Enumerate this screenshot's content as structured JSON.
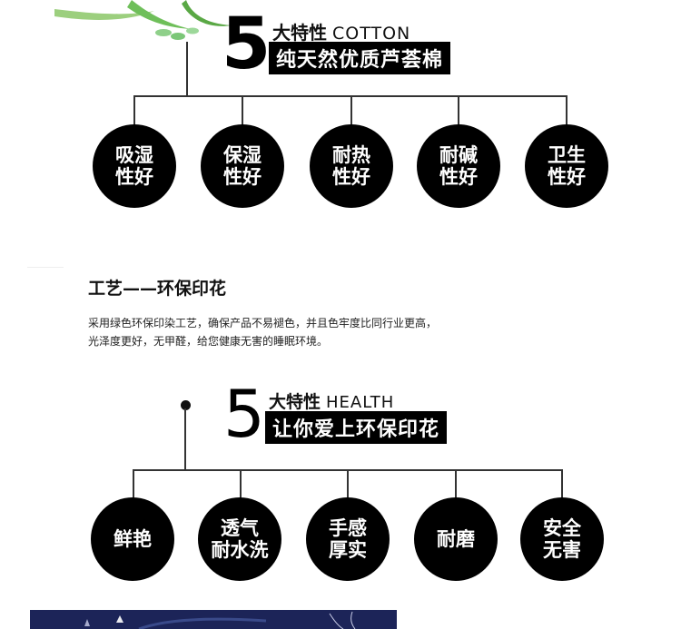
{
  "section1": {
    "number": "5",
    "title": "大特性",
    "title_en": "COTTON",
    "subtitle": "纯天然优质芦荟棉",
    "features": [
      {
        "line1": "吸湿",
        "line2": "性好"
      },
      {
        "line1": "保湿",
        "line2": "性好"
      },
      {
        "line1": "耐热",
        "line2": "性好"
      },
      {
        "line1": "耐碱",
        "line2": "性好"
      },
      {
        "line1": "卫生",
        "line2": "性好"
      }
    ]
  },
  "craft": {
    "title": "工艺——环保印花",
    "description_line1": "采用绿色环保印染工艺，确保产品不易褪色，并且色牢度比同行业更高，",
    "description_line2": "光泽度更好，无甲醛，给您健康无害的睡眠环境。"
  },
  "section2": {
    "number": "5",
    "title": "大特性",
    "title_en": "HEALTH",
    "subtitle": "让你爱上环保印花",
    "features": [
      {
        "line1": "鲜艳",
        "line2": ""
      },
      {
        "line1": "透气",
        "line2": "耐水洗"
      },
      {
        "line1": "手感",
        "line2": "厚实"
      },
      {
        "line1": "耐磨",
        "line2": ""
      },
      {
        "line1": "安全",
        "line2": "无害"
      }
    ]
  },
  "colors": {
    "circle": "#000000",
    "leaf": "#6fbf5a",
    "photo_bg": "#1c2458"
  },
  "icons": [
    "aloe-leaf-icon",
    "bullet-dot-icon"
  ]
}
